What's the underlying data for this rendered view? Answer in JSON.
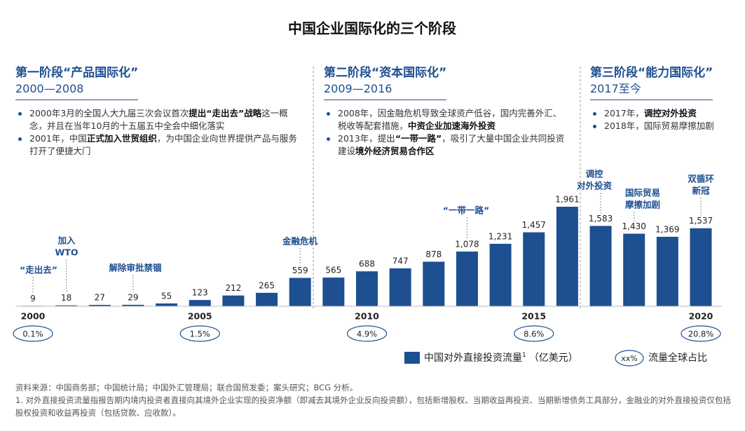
{
  "title": "中国企业国际化的三个阶段",
  "phases": [
    {
      "name": "第一阶段“产品国际化”",
      "period": "2000—2008",
      "bullets": [
        [
          {
            "text": "2000年3月的全国人大九届三次会议首次"
          },
          {
            "text": "提出“走出去”战略",
            "bold": true
          },
          {
            "text": "这一概念，并且在当年10月的十五届五中全会中细化落实"
          }
        ],
        [
          {
            "text": "2001年，中国"
          },
          {
            "text": "正式加入世贸组织",
            "bold": true
          },
          {
            "text": "，为中国企业向世界提供产品与服务打开了便捷大门"
          }
        ]
      ]
    },
    {
      "name": "第二阶段“资本国际化”",
      "period": "2009—2016",
      "bullets": [
        [
          {
            "text": "2008年，因金融危机导致全球资产低谷，国内完善外汇、税收等配套措施，"
          },
          {
            "text": "中资企业加速海外投资",
            "bold": true
          }
        ],
        [
          {
            "text": "2013年，提出"
          },
          {
            "text": "“一带一路”",
            "bold": true
          },
          {
            "text": "，吸引了大量中国企业共同投资建设"
          },
          {
            "text": "境外经济贸易合作区",
            "bold": true
          }
        ]
      ]
    },
    {
      "name": "第三阶段“能力国际化”",
      "period": "2017至今",
      "bullets": [
        [
          {
            "text": "2017年，"
          },
          {
            "text": "调控对外投资",
            "bold": true
          }
        ],
        [
          {
            "text": "2018年，国际贸易摩擦加剧"
          }
        ]
      ]
    }
  ],
  "chart_data": {
    "type": "bar",
    "categories": [
      "2000",
      null,
      null,
      null,
      null,
      "2005",
      null,
      null,
      null,
      null,
      "2010",
      null,
      null,
      null,
      null,
      "2015",
      null,
      null,
      null,
      null,
      "2020"
    ],
    "series": [
      {
        "name": "中国对外直接投资流量",
        "color": "#1d4f91",
        "values": [
          9,
          18,
          27,
          29,
          55,
          123,
          212,
          265,
          559,
          565,
          688,
          747,
          878,
          1078,
          1231,
          1457,
          1961,
          1583,
          1430,
          1369,
          1537
        ],
        "value_labels": [
          "9",
          "18",
          "27",
          "29",
          "55",
          "123",
          "212",
          "265",
          "559",
          "565",
          "688",
          "747",
          "878",
          "1,078",
          "1,231",
          "1,457",
          "1,961",
          "1,583",
          "1,430",
          "1,369",
          "1,537"
        ]
      }
    ],
    "legend_note": "1",
    "unit": "（亿美元）",
    "shares": [
      {
        "value": 0.1,
        "label": "0.1%"
      },
      {
        "value": 1.5,
        "label": "1.5%"
      },
      {
        "value": 4.9,
        "label": "4.9%"
      },
      {
        "value": 8.6,
        "label": "8.6%"
      },
      {
        "value": 20.8,
        "label": "20.8%"
      }
    ],
    "share_legend": {
      "symbol": "xx%",
      "label": "流量全球占比"
    },
    "annotations": [
      [
        "“走出去”"
      ],
      [
        "加入",
        "WTO"
      ],
      [
        "解除审批禁锢"
      ],
      [
        "金融危机"
      ],
      [
        "“一带一路”"
      ],
      [
        "调控",
        "对外投资"
      ],
      [
        "国际贸易",
        "摩擦加剧"
      ],
      [
        "双循环",
        "新冠"
      ]
    ]
  },
  "sources": [
    "资料来源：中国商务部；中国统计局；中国外汇管理局；联合国贸发委；案头研究；BCG 分析。",
    "1. 对外直接投资流量指报告期内境内投资者直接向其境外企业实现的投资净额（即减去其境外企业反向投资额），包括新增股权、当期收益再投资、当期新增债务工具部分，金融业的对外直接投资仅包括股权投资和收益再投资（包括贷款、应收款）。"
  ]
}
